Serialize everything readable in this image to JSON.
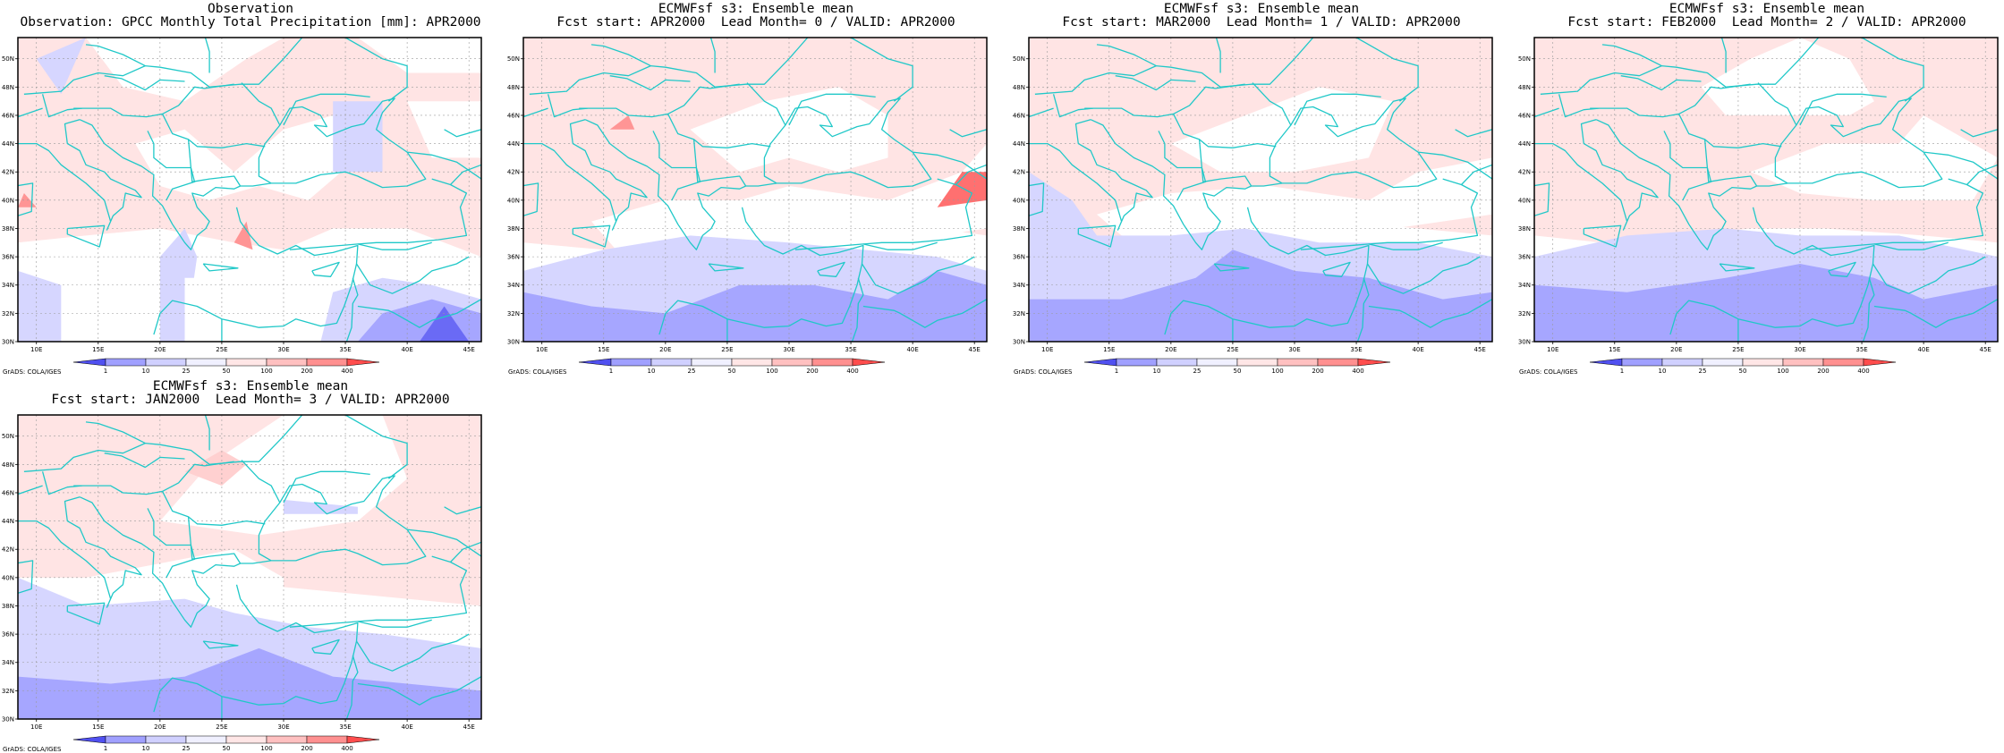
{
  "panels": [
    {
      "title_line1": "Observation",
      "title_line2": "Observation: GPCC Monthly Total Precipitation [mm]: APR2000",
      "kind": "observation"
    },
    {
      "title_line1": "ECMWFsf s3: Ensemble mean",
      "title_line2": "Fcst start: APR2000  Lead Month= 0 / VALID: APR2000",
      "kind": "lead0"
    },
    {
      "title_line1": "ECMWFsf s3: Ensemble mean",
      "title_line2": "Fcst start: MAR2000  Lead Month= 1 / VALID: APR2000",
      "kind": "lead1"
    },
    {
      "title_line1": "ECMWFsf s3: Ensemble mean",
      "title_line2": "Fcst start: FEB2000  Lead Month= 2 / VALID: APR2000",
      "kind": "lead2"
    },
    {
      "title_line1": "ECMWFsf s3: Ensemble mean",
      "title_line2": "Fcst start: JAN2000  Lead Month= 3 / VALID: APR2000",
      "kind": "lead3"
    }
  ],
  "lat_labels": [
    "30N",
    "32N",
    "34N",
    "36N",
    "38N",
    "40N",
    "42N",
    "44N",
    "46N",
    "48N",
    "50N"
  ],
  "lon_labels": [
    "10E",
    "15E",
    "20E",
    "25E",
    "30E",
    "35E",
    "40E",
    "45E"
  ],
  "colorbar": {
    "labels": [
      "1",
      "10",
      "25",
      "50",
      "100",
      "200",
      "400"
    ],
    "colors": [
      "#5050f0",
      "#a0a0ff",
      "#d0d0ff",
      "#f0f0ff",
      "#ffe6e6",
      "#ffc0c0",
      "#ff9090",
      "#ff4d4d"
    ]
  },
  "credit": "GrADS: COLA/IGES",
  "colors": {
    "coast": "#20c8c8",
    "grid": "#9a9a9a",
    "frame": "#000000"
  }
}
